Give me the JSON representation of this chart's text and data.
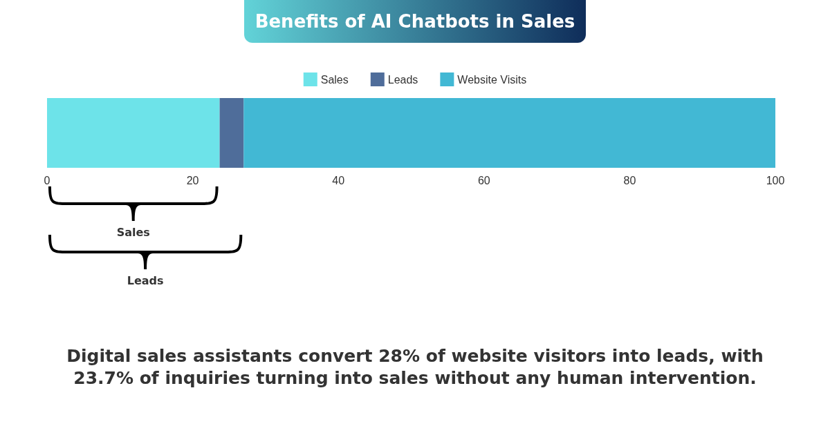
{
  "chart_data": {
    "type": "bar",
    "title": "Benefits of AI Chatbots in Sales",
    "orientation": "horizontal",
    "stacked": true,
    "categories": [
      null
    ],
    "series": [
      {
        "name": "Sales",
        "color": "#6de3e9",
        "values": [
          23.7
        ]
      },
      {
        "name": "Leads",
        "color": "#4f6d9a",
        "values": [
          3.3
        ]
      },
      {
        "name": "Website Visits",
        "color": "#42b8d4",
        "values": [
          73
        ]
      }
    ],
    "xlim": [
      0,
      100
    ],
    "xticks": [
      0,
      20,
      40,
      60,
      80,
      100
    ],
    "grid": false,
    "legend": "top",
    "annotations": [
      "Sales",
      "Leads",
      "Digital sales assistants convert 28% of website visitors into leads, with 23.7% of inquiries turning into sales without any human intervention."
    ]
  }
}
